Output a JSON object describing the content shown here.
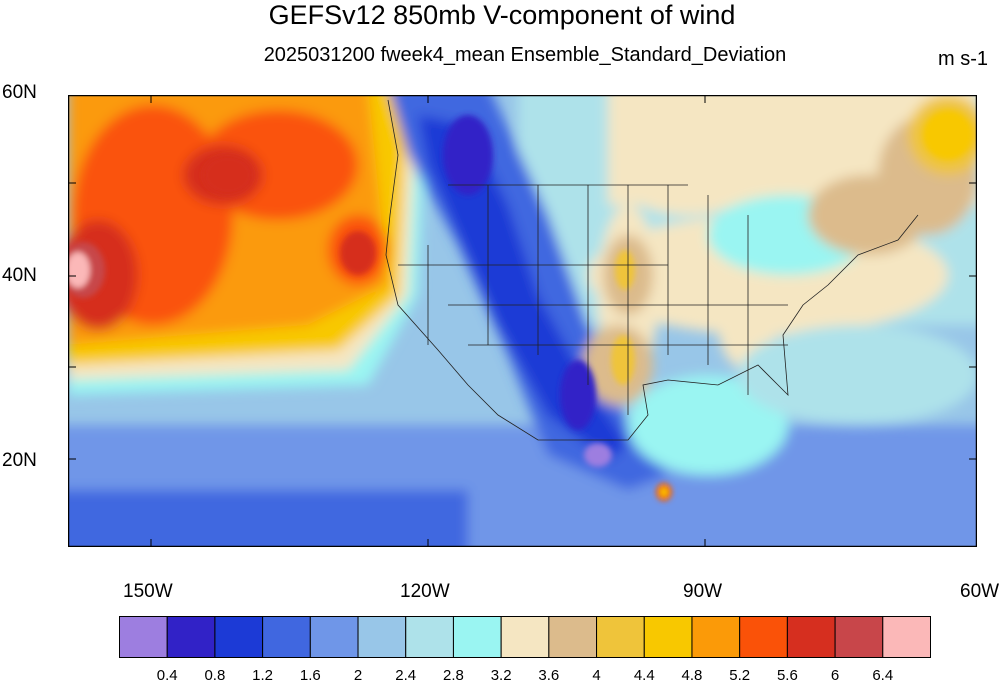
{
  "title": "GEFSv12 850mb V-component of wind",
  "subtitle": "2025031200 fweek4_mean Ensemble_Standard_Deviation",
  "units": "m s-1",
  "lat_labels": [
    "60N",
    "40N",
    "20N"
  ],
  "lon_labels": [
    "150W",
    "120W",
    "90W",
    "60W"
  ],
  "colorbar": {
    "colors": [
      "#9d7ee0",
      "#3122c7",
      "#1c3ad6",
      "#4067e0",
      "#6f96e8",
      "#98c6e8",
      "#aee2ea",
      "#9af5f2",
      "#f5e6c2",
      "#dcbb8c",
      "#efc43a",
      "#f8c800",
      "#fb9a08",
      "#fa5208",
      "#d62f1f",
      "#c8464a",
      "#fbb8b8"
    ],
    "labels": [
      "0.4",
      "0.8",
      "1.2",
      "1.6",
      "2",
      "2.4",
      "2.8",
      "3.2",
      "3.6",
      "4",
      "4.4",
      "4.8",
      "5.2",
      "5.6",
      "6",
      "6.4"
    ]
  },
  "chart_data": {
    "type": "heatmap",
    "title": "GEFSv12 850mb V-component of wind",
    "subtitle": "2025031200 fweek4_mean Ensemble_Standard_Deviation",
    "units": "m s-1",
    "xlim": [
      -160,
      -60
    ],
    "ylim": [
      10,
      60
    ],
    "contour_levels": [
      0.4,
      0.8,
      1.2,
      1.6,
      2,
      2.4,
      2.8,
      3.2,
      3.6,
      4,
      4.4,
      4.8,
      5.2,
      5.6,
      6,
      6.4
    ]
  }
}
